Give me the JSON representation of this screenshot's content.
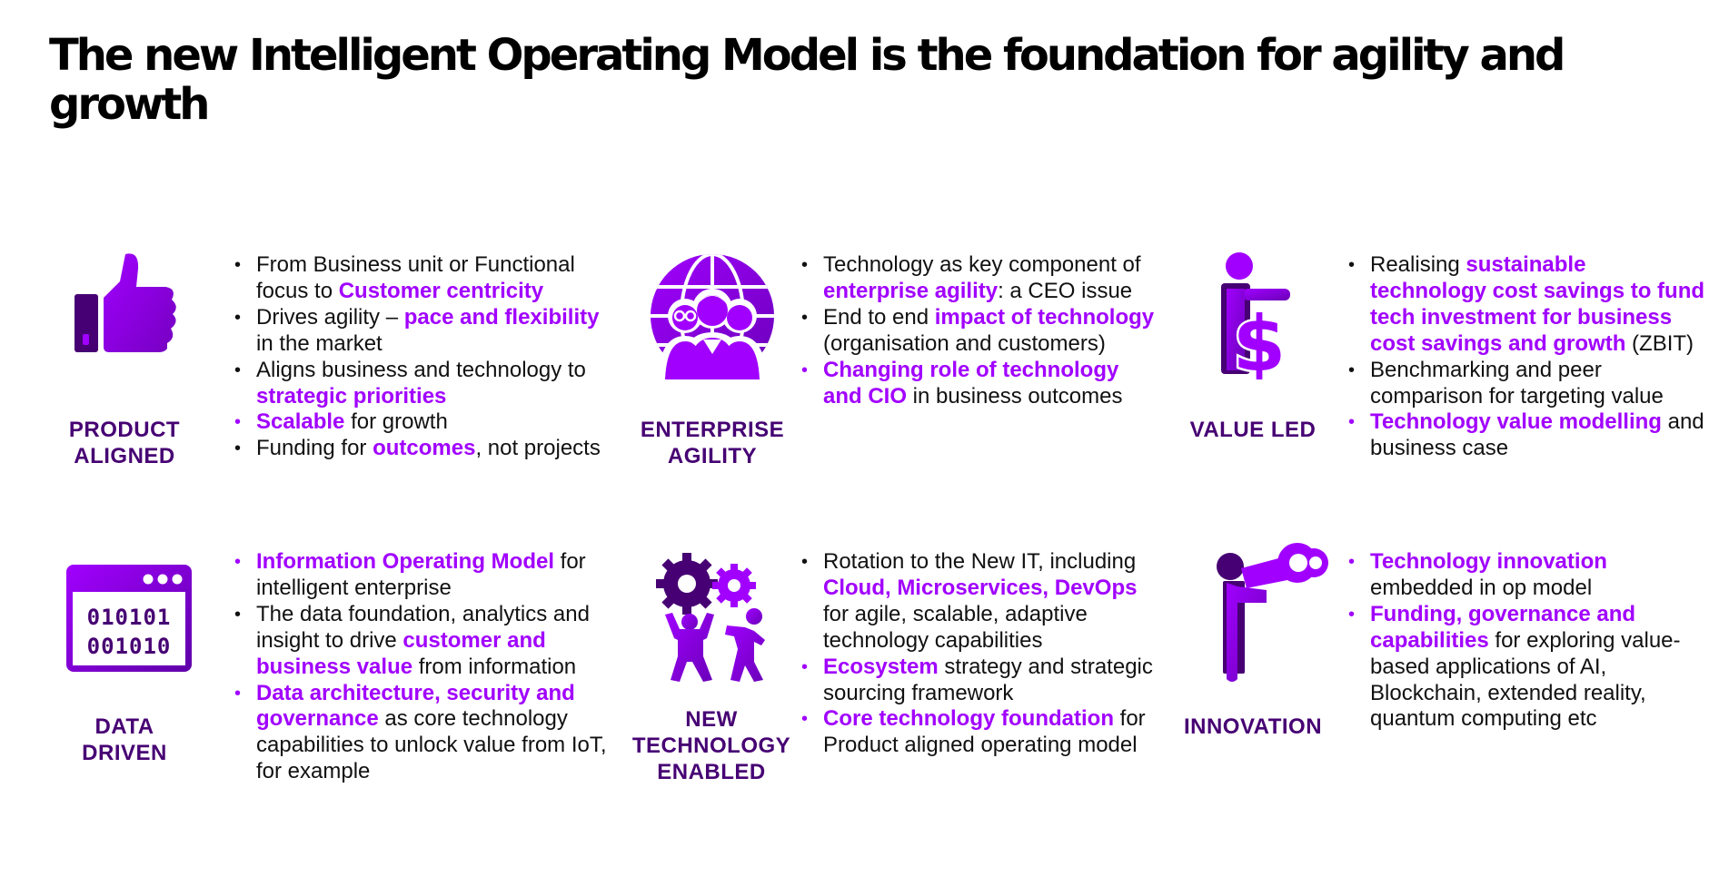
{
  "title": "The new Intelligent Operating Model is the foundation for agility and growth",
  "colors": {
    "accent": "#a100ff",
    "dark_purple": "#460073",
    "text": "#111111"
  },
  "cards": {
    "product": {
      "icon": "thumbs-up-icon",
      "label_line1": "PRODUCT",
      "label_line2": "ALIGNED",
      "bullets": [
        [
          {
            "t": "From Business unit or Functional focus to "
          },
          {
            "t": "Customer centricity",
            "hl": true
          }
        ],
        [
          {
            "t": "Drives agility – "
          },
          {
            "t": "pace and flexibility",
            "hl": true
          },
          {
            "t": " in the market"
          }
        ],
        [
          {
            "t": "Aligns business and technology to "
          },
          {
            "t": "strategic priorities",
            "hl": true
          }
        ],
        [
          {
            "t": "Scalable",
            "hl": true
          },
          {
            "t": " for growth"
          }
        ],
        [
          {
            "t": "Funding for "
          },
          {
            "t": "outcomes",
            "hl": true
          },
          {
            "t": ", not projects"
          }
        ]
      ]
    },
    "agility": {
      "icon": "people-globe-icon",
      "label_line1": "ENTERPRISE",
      "label_line2": "AGILITY",
      "bullets": [
        [
          {
            "t": "Technology as key component of "
          },
          {
            "t": "enterprise agility",
            "hl": true
          },
          {
            "t": ": a CEO issue"
          }
        ],
        [
          {
            "t": "End to end "
          },
          {
            "t": "impact of technology",
            "hl": true
          },
          {
            "t": " (organisation and customers)"
          }
        ],
        [
          {
            "t": "Changing role of technology and CIO",
            "hl": true
          },
          {
            "t": " in business outcomes"
          }
        ]
      ]
    },
    "value": {
      "icon": "dollar-person-icon",
      "label_line1": "VALUE LED",
      "label_line2": "",
      "bullets": [
        [
          {
            "t": "Realising "
          },
          {
            "t": "sustainable technology cost savings to fund tech investment for business cost savings and growth",
            "hl": true
          },
          {
            "t": " (ZBIT)"
          }
        ],
        [
          {
            "t": "Benchmarking and peer comparison for targeting value"
          }
        ],
        [
          {
            "t": "Technology value modelling",
            "hl": true
          },
          {
            "t": " and  business case"
          }
        ]
      ]
    },
    "data": {
      "icon": "binary-window-icon",
      "icon_text_1": "010101",
      "icon_text_2": "001010",
      "label_line1": "DATA",
      "label_line2": "DRIVEN",
      "bullets": [
        [
          {
            "t": "Information Operating Model",
            "hl": true
          },
          {
            "t": " for intelligent enterprise"
          }
        ],
        [
          {
            "t": "The data foundation, analytics and insight to drive "
          },
          {
            "t": "customer and business value",
            "hl": true
          },
          {
            "t": " from information"
          }
        ],
        [
          {
            "t": "Data architecture, security and governance",
            "hl": true
          },
          {
            "t": " as core technology capabilities to unlock value from IoT, for example"
          }
        ]
      ]
    },
    "tech": {
      "icon": "gears-people-icon",
      "label_line1": "NEW",
      "label_line2": "TECHNOLOGY",
      "label_line3": "ENABLED",
      "bullets": [
        [
          {
            "t": "Rotation to the New IT, including "
          },
          {
            "t": "Cloud, Microservices, DevOps",
            "hl": true
          },
          {
            "t": " for agile, scalable, adaptive technology capabilities"
          }
        ],
        [
          {
            "t": "Ecosystem",
            "hl": true
          },
          {
            "t": " strategy and strategic sourcing framework"
          }
        ],
        [
          {
            "t": "Core technology foundation",
            "hl": true
          },
          {
            "t": " for Product aligned operating model"
          }
        ]
      ]
    },
    "innovation": {
      "icon": "binoculars-person-icon",
      "label_line1": "INNOVATION",
      "label_line2": "",
      "bullets": [
        [
          {
            "t": "Technology innovation",
            "hl": true
          },
          {
            "t": " embedded in op model"
          }
        ],
        [
          {
            "t": "Funding, governance and capabilities",
            "hl": true
          },
          {
            "t": " for exploring value-based applications of AI, Blockchain, extended reality, quantum computing etc"
          }
        ]
      ]
    }
  }
}
